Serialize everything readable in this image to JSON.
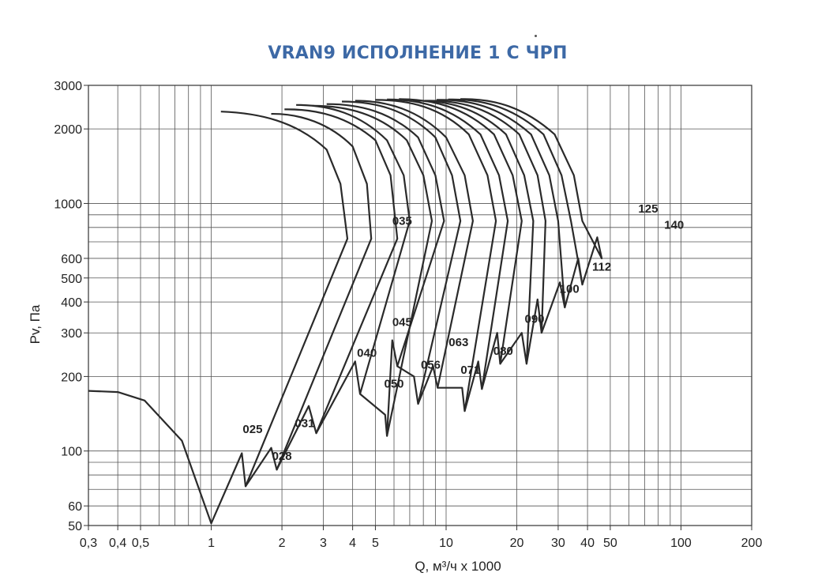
{
  "chart_data": {
    "type": "line",
    "title": "VRAN9 ИСПОЛНЕНИЕ 1 С ЧРП",
    "xlabel": "Q, м³/ч x 1000",
    "ylabel": "Pv, Па",
    "xscale": "log",
    "yscale": "log",
    "xlim": [
      0.3,
      200
    ],
    "ylim": [
      50,
      3000
    ],
    "x_ticks": [
      {
        "value": 0.3,
        "label": "0,3"
      },
      {
        "value": 0.4,
        "label": "0,4"
      },
      {
        "value": 0.5,
        "label": "0,5"
      },
      {
        "value": 1,
        "label": "1"
      },
      {
        "value": 2,
        "label": "2"
      },
      {
        "value": 3,
        "label": "3"
      },
      {
        "value": 4,
        "label": "4"
      },
      {
        "value": 5,
        "label": "5"
      },
      {
        "value": 10,
        "label": "10"
      },
      {
        "value": 20,
        "label": "20"
      },
      {
        "value": 30,
        "label": "30"
      },
      {
        "value": 40,
        "label": "40"
      },
      {
        "value": 50,
        "label": "50"
      },
      {
        "value": 100,
        "label": "100"
      },
      {
        "value": 200,
        "label": "200"
      }
    ],
    "y_ticks": [
      {
        "value": 50,
        "label": "50"
      },
      {
        "value": 60,
        "label": "60"
      },
      {
        "value": 100,
        "label": "100"
      },
      {
        "value": 200,
        "label": "200"
      },
      {
        "value": 300,
        "label": "300"
      },
      {
        "value": 400,
        "label": "400"
      },
      {
        "value": 500,
        "label": "500"
      },
      {
        "value": 600,
        "label": "600"
      },
      {
        "value": 1000,
        "label": "1000"
      },
      {
        "value": 2000,
        "label": "2000"
      },
      {
        "value": 3000,
        "label": "3000"
      }
    ],
    "x_grid": [
      0.3,
      0.4,
      0.5,
      0.6,
      0.7,
      0.8,
      0.9,
      1,
      2,
      3,
      4,
      5,
      6,
      7,
      8,
      9,
      10,
      20,
      30,
      40,
      50,
      60,
      70,
      80,
      90,
      100,
      200
    ],
    "y_grid": [
      50,
      60,
      70,
      80,
      90,
      100,
      200,
      300,
      400,
      500,
      600,
      700,
      800,
      900,
      1000,
      2000,
      3000
    ],
    "series": [
      {
        "name": "025",
        "label_at": [
          1.5,
          118
        ],
        "points": [
          [
            1.1,
            2350
          ],
          [
            1.6,
            2320
          ],
          [
            2.3,
            2150
          ],
          [
            3.1,
            1650
          ],
          [
            3.55,
            1200
          ],
          [
            3.8,
            720
          ],
          [
            1.4,
            72
          ],
          [
            1.35,
            98
          ],
          [
            1.0,
            51
          ],
          [
            0.75,
            110
          ],
          [
            0.52,
            160
          ],
          [
            0.4,
            173
          ],
          [
            0.3,
            175
          ]
        ]
      },
      {
        "name": "028",
        "label_at": [
          2.0,
          92
        ],
        "points": [
          [
            1.8,
            2300
          ],
          [
            2.4,
            2310
          ],
          [
            3.2,
            2100
          ],
          [
            4.0,
            1700
          ],
          [
            4.6,
            1200
          ],
          [
            4.8,
            720
          ],
          [
            1.9,
            84
          ],
          [
            1.8,
            103
          ],
          [
            1.4,
            72
          ]
        ]
      },
      {
        "name": "031",
        "label_at": [
          2.5,
          125
        ],
        "points": [
          [
            2.05,
            2400
          ],
          [
            2.8,
            2410
          ],
          [
            3.8,
            2250
          ],
          [
            5.0,
            1800
          ],
          [
            5.8,
            1300
          ],
          [
            6.2,
            720
          ],
          [
            2.8,
            118
          ],
          [
            2.6,
            152
          ],
          [
            1.9,
            84
          ]
        ]
      },
      {
        "name": "035",
        "label_at": [
          6.5,
          820
        ],
        "points": [
          [
            2.3,
            2500
          ],
          [
            3.2,
            2500
          ],
          [
            4.3,
            2300
          ],
          [
            5.6,
            1800
          ],
          [
            6.6,
            1300
          ],
          [
            7.0,
            850
          ],
          [
            4.3,
            170
          ],
          [
            4.1,
            230
          ],
          [
            2.8,
            118
          ]
        ]
      },
      {
        "name": "040",
        "label_at": [
          4.6,
          240
        ],
        "points": [
          [
            2.7,
            2480
          ],
          [
            3.8,
            2480
          ],
          [
            5.2,
            2300
          ],
          [
            6.8,
            1800
          ],
          [
            8.0,
            1300
          ],
          [
            8.7,
            850
          ],
          [
            5.6,
            115
          ],
          [
            5.5,
            140
          ],
          [
            4.3,
            170
          ]
        ]
      },
      {
        "name": "045",
        "label_at": [
          6.5,
          320
        ],
        "points": [
          [
            3.1,
            2520
          ],
          [
            4.3,
            2520
          ],
          [
            5.8,
            2350
          ],
          [
            7.6,
            1850
          ],
          [
            9.0,
            1300
          ],
          [
            9.8,
            850
          ],
          [
            6.2,
            220
          ],
          [
            5.9,
            280
          ],
          [
            5.6,
            115
          ]
        ]
      },
      {
        "name": "050",
        "label_at": [
          6.0,
          180
        ],
        "points": [
          [
            3.6,
            2580
          ],
          [
            5.0,
            2580
          ],
          [
            6.8,
            2400
          ],
          [
            9.0,
            1850
          ],
          [
            10.6,
            1300
          ],
          [
            11.5,
            850
          ],
          [
            7.6,
            155
          ],
          [
            7.3,
            200
          ],
          [
            6.2,
            220
          ]
        ]
      },
      {
        "name": "056",
        "label_at": [
          8.6,
          215
        ],
        "points": [
          [
            4.1,
            2600
          ],
          [
            5.6,
            2600
          ],
          [
            7.6,
            2400
          ],
          [
            10.0,
            1850
          ],
          [
            12.0,
            1300
          ],
          [
            13.0,
            850
          ],
          [
            9.2,
            180
          ],
          [
            8.8,
            220
          ],
          [
            7.6,
            155
          ]
        ]
      },
      {
        "name": "063",
        "label_at": [
          11.3,
          265
        ],
        "points": [
          [
            5.0,
            2620
          ],
          [
            7.0,
            2620
          ],
          [
            9.5,
            2450
          ],
          [
            12.5,
            1900
          ],
          [
            15.0,
            1300
          ],
          [
            16.3,
            850
          ],
          [
            12.0,
            145
          ],
          [
            11.7,
            180
          ],
          [
            9.2,
            180
          ]
        ]
      },
      {
        "name": "071",
        "label_at": [
          12.7,
          205
        ],
        "points": [
          [
            5.6,
            2630
          ],
          [
            7.8,
            2630
          ],
          [
            10.5,
            2450
          ],
          [
            14.0,
            1900
          ],
          [
            16.8,
            1300
          ],
          [
            18.3,
            850
          ],
          [
            14.2,
            178
          ],
          [
            13.7,
            230
          ],
          [
            12.0,
            145
          ]
        ]
      },
      {
        "name": "080",
        "label_at": [
          17.5,
          245
        ],
        "points": [
          [
            6.3,
            2640
          ],
          [
            8.8,
            2640
          ],
          [
            12.0,
            2450
          ],
          [
            16.0,
            1900
          ],
          [
            19.2,
            1300
          ],
          [
            21.0,
            850
          ],
          [
            17.0,
            225
          ],
          [
            16.5,
            300
          ],
          [
            14.2,
            178
          ]
        ]
      },
      {
        "name": "090",
        "label_at": [
          23.8,
          330
        ],
        "points": [
          [
            7.2,
            2600
          ],
          [
            10.0,
            2620
          ],
          [
            13.5,
            2450
          ],
          [
            18.0,
            1900
          ],
          [
            21.5,
            1300
          ],
          [
            23.5,
            850
          ],
          [
            22.0,
            225
          ],
          [
            21.0,
            300
          ],
          [
            17.0,
            225
          ]
        ]
      },
      {
        "name": "100",
        "label_at": [
          33.5,
          435
        ],
        "points": [
          [
            8.1,
            2600
          ],
          [
            11.3,
            2620
          ],
          [
            15.3,
            2450
          ],
          [
            20.5,
            1900
          ],
          [
            24.5,
            1300
          ],
          [
            26.5,
            850
          ],
          [
            25.5,
            300
          ],
          [
            24.5,
            410
          ],
          [
            22.0,
            225
          ]
        ]
      },
      {
        "name": "112",
        "label_at": [
          46.0,
          535
        ],
        "points": [
          [
            9.1,
            2620
          ],
          [
            12.7,
            2640
          ],
          [
            17.0,
            2450
          ],
          [
            23.0,
            1900
          ],
          [
            27.5,
            1300
          ],
          [
            30.0,
            850
          ],
          [
            32.0,
            380
          ],
          [
            30.5,
            480
          ],
          [
            25.5,
            300
          ]
        ]
      },
      {
        "name": "125",
        "label_at": [
          72.5,
          920
        ],
        "points": [
          [
            10.2,
            2630
          ],
          [
            14.3,
            2650
          ],
          [
            19.3,
            2450
          ],
          [
            26.0,
            1900
          ],
          [
            31.0,
            1300
          ],
          [
            34.0,
            850
          ],
          [
            38.0,
            470
          ],
          [
            36.5,
            600
          ],
          [
            32.0,
            380
          ]
        ]
      },
      {
        "name": "140",
        "label_at": [
          93.5,
          790
        ],
        "points": [
          [
            11.5,
            2640
          ],
          [
            16.0,
            2660
          ],
          [
            21.5,
            2450
          ],
          [
            29.0,
            1900
          ],
          [
            35.0,
            1300
          ],
          [
            38.0,
            850
          ],
          [
            46.0,
            600
          ],
          [
            44.0,
            730
          ],
          [
            38.0,
            470
          ]
        ]
      }
    ]
  }
}
